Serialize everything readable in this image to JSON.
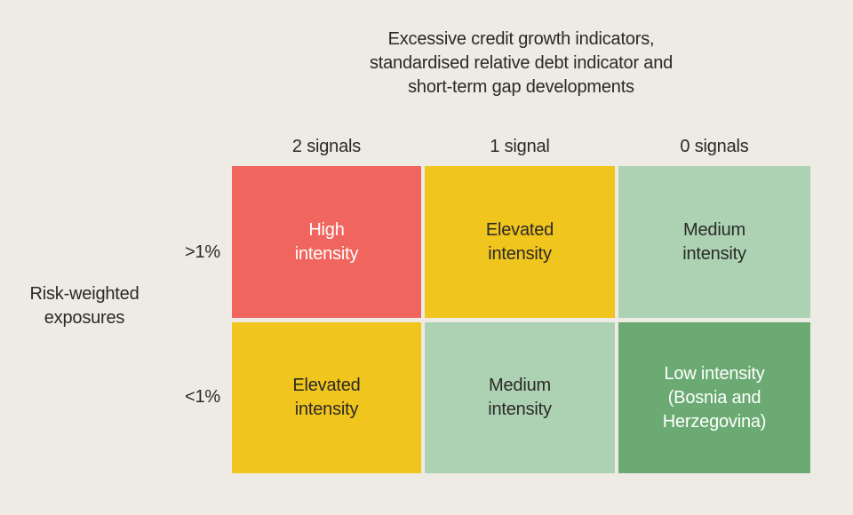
{
  "colors": {
    "background": "#EEEBE4",
    "text_dark": "#2B2926",
    "text_light": "#FFFFFF",
    "high_intensity": "#F0655D",
    "elevated_intensity": "#F0C51E",
    "medium_intensity": "#ADD2B3",
    "low_intensity": "#6BAB73"
  },
  "title": {
    "line1": "Excessive credit growth indicators,",
    "line2": "standardised relative debt indicator and",
    "line3": "short-term gap developments"
  },
  "columns": {
    "header1": "2 signals",
    "header2": "1 signal",
    "header3": "0 signals"
  },
  "row_axis": {
    "label_line1": "Risk-weighted",
    "label_line2": "exposures",
    "row1": ">1%",
    "row2": "<1%"
  },
  "matrix": {
    "r1c1": {
      "level": "High intensity",
      "line1": "High",
      "line2": "intensity",
      "bg": "#F0655D",
      "fg": "#FFFFFF"
    },
    "r1c2": {
      "level": "Elevated intensity",
      "line1": "Elevated",
      "line2": "intensity",
      "bg": "#F0C51E",
      "fg": "#2B2926"
    },
    "r1c3": {
      "level": "Medium intensity",
      "line1": "Medium",
      "line2": "intensity",
      "bg": "#ADD2B3",
      "fg": "#2B2926"
    },
    "r2c1": {
      "level": "Elevated intensity",
      "line1": "Elevated",
      "line2": "intensity",
      "bg": "#F0C51E",
      "fg": "#2B2926"
    },
    "r2c2": {
      "level": "Medium intensity",
      "line1": "Medium",
      "line2": "intensity",
      "bg": "#ADD2B3",
      "fg": "#2B2926"
    },
    "r2c3": {
      "level": "Low intensity (Bosnia and Herzegovina)",
      "line1": "Low intensity",
      "line2": "(Bosnia and",
      "line3": "Herzegovina)",
      "bg": "#6BAB73",
      "fg": "#FFFFFF"
    }
  }
}
